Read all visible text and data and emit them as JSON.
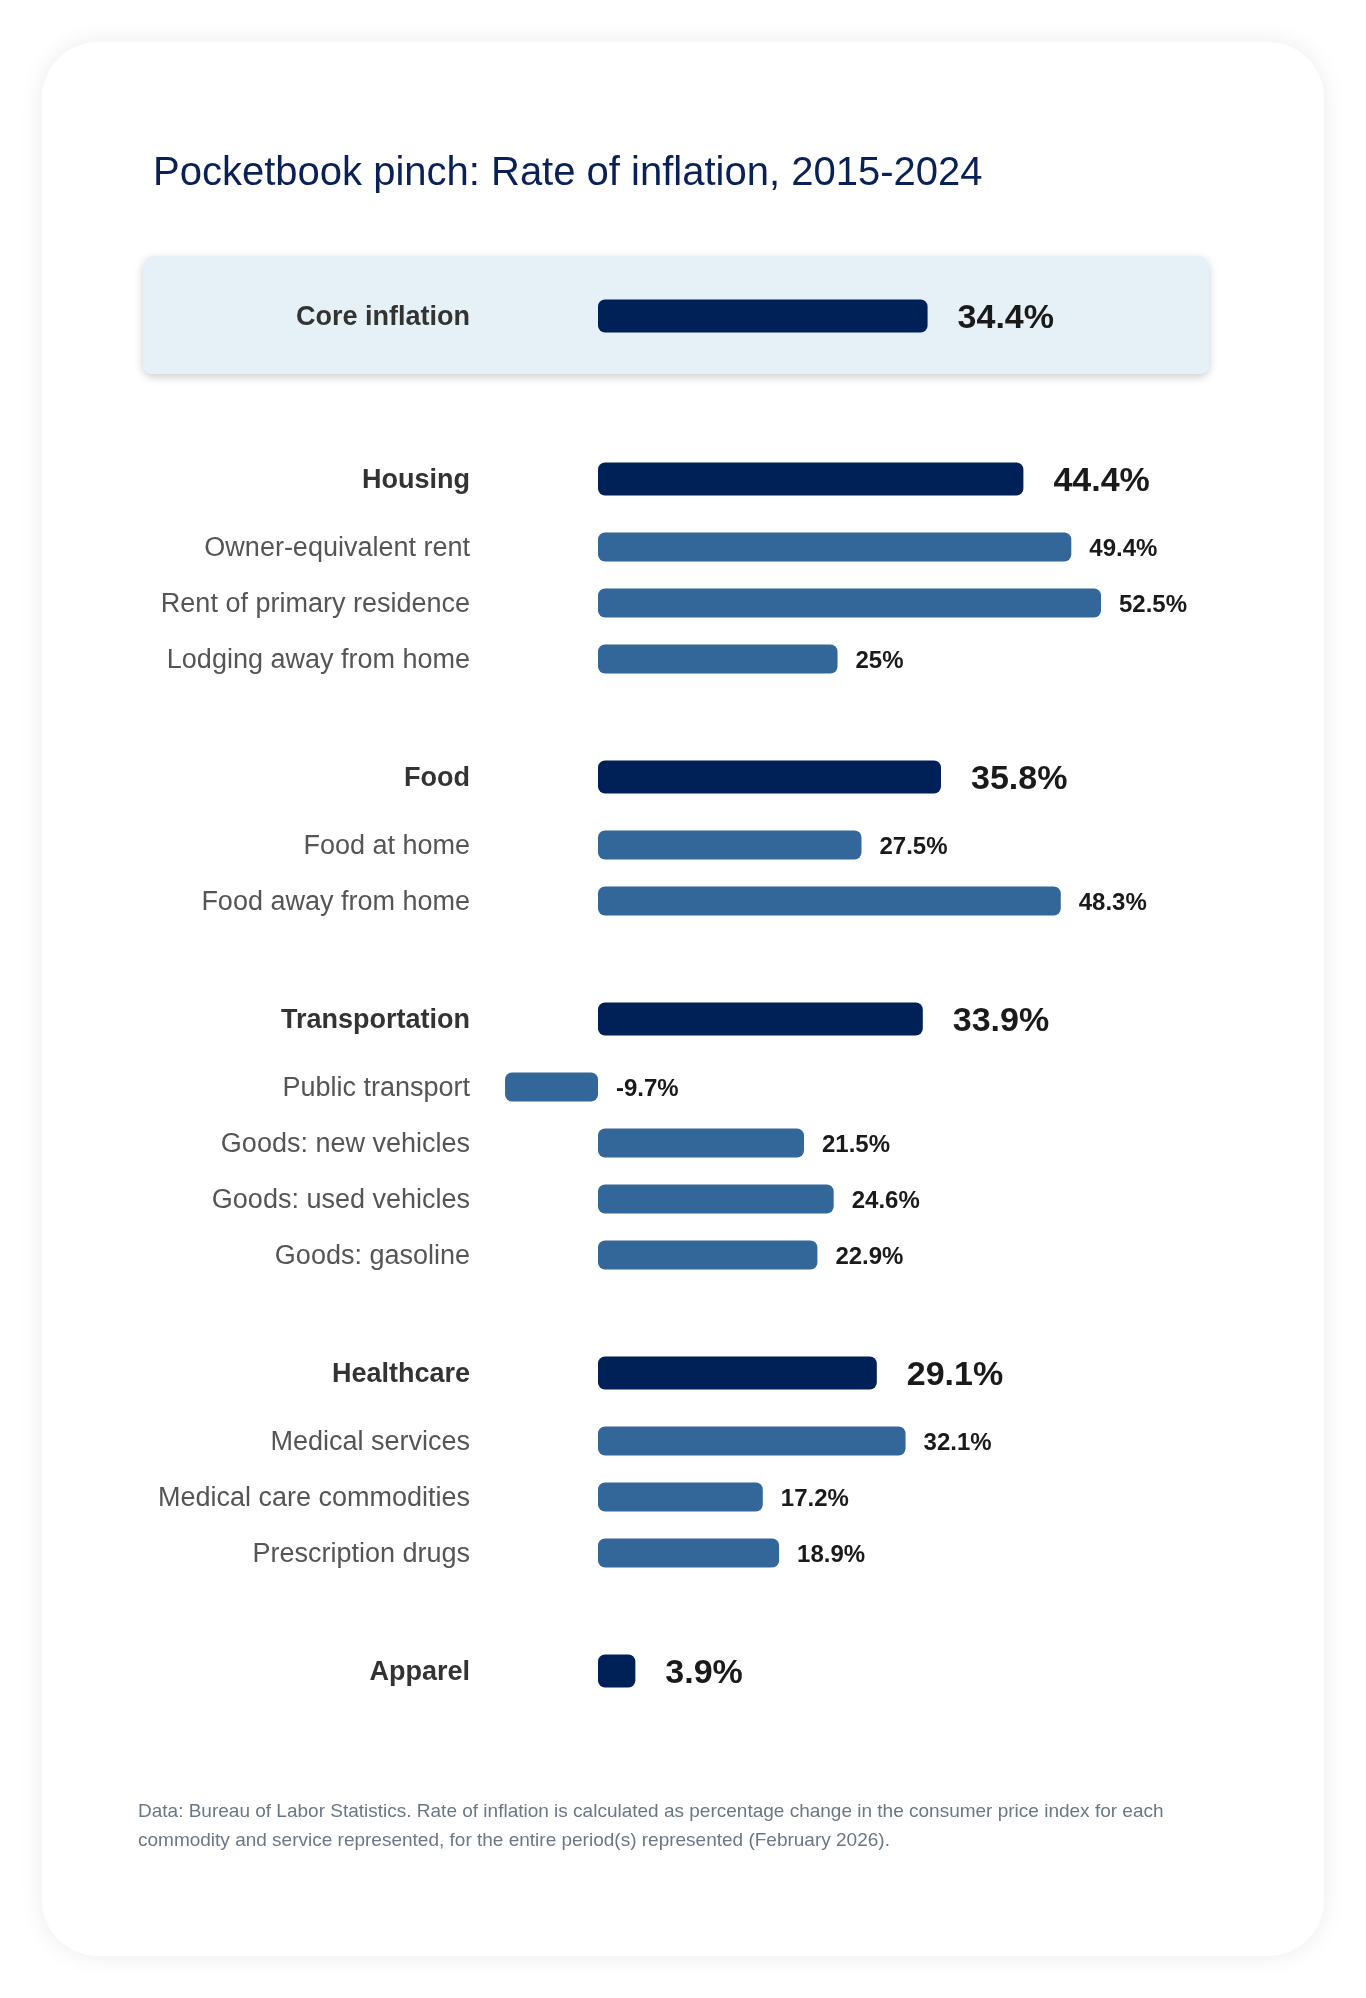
{
  "chart_data": {
    "type": "bar",
    "orientation": "horizontal",
    "title": "Pocketbook pinch: Rate of inflation, 2015-2024",
    "categories": [
      "Core inflation",
      "Housing",
      "Owner-equivalent rent",
      "Rent of primary residence",
      "Lodging away from home",
      "Food",
      "Food at home",
      "Food away from home",
      "Transportation",
      "Public transport",
      "Goods: new vehicles",
      "Goods: used vehicles",
      "Goods: gasoline",
      "Healthcare",
      "Medical services",
      "Medical care commodities",
      "Prescription drugs",
      "Apparel"
    ],
    "values": [
      34.4,
      44.4,
      49.4,
      52.5,
      25,
      35.8,
      27.5,
      48.3,
      33.9,
      -9.7,
      21.5,
      24.6,
      22.9,
      29.1,
      32.1,
      17.2,
      18.9,
      3.9
    ],
    "value_labels": [
      "34.4%",
      "44.4%",
      "49.4%",
      "52.5%",
      "25%",
      "35.8%",
      "27.5%",
      "48.3%",
      "33.9%",
      "-9.7%",
      "21.5%",
      "24.6%",
      "22.9%",
      "29.1%",
      "32.1%",
      "17.2%",
      "18.9%",
      "3.9%"
    ],
    "colors": [
      "#002157",
      "#002157",
      "#336699",
      "#336699",
      "#336699",
      "#002157",
      "#336699",
      "#336699",
      "#002157",
      "#336699",
      "#336699",
      "#336699",
      "#336699",
      "#002157",
      "#336699",
      "#336699",
      "#336699",
      "#002157"
    ],
    "annotations": [
      "Data: Bureau of Labor Statistics. Rate of inflation is calculated as percentage change in the consumer price index for each commodity and service represented, for the entire period(s) represented (February 2026)."
    ]
  }
}
